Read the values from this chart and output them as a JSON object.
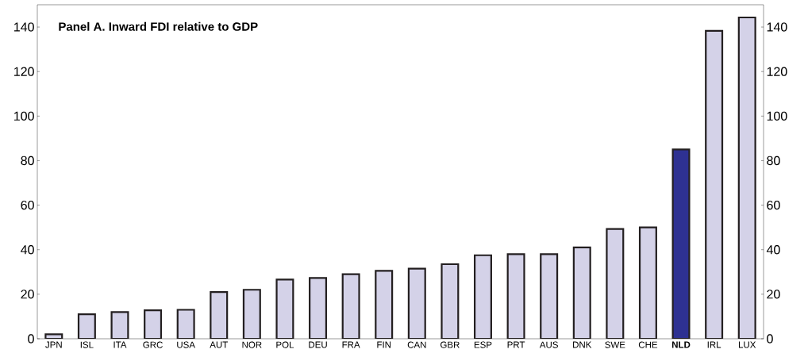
{
  "chart_data": {
    "type": "bar",
    "title": "Panel A. Inward FDI relative to GDP",
    "categories": [
      "JPN",
      "ISL",
      "ITA",
      "GRC",
      "USA",
      "AUT",
      "NOR",
      "POL",
      "DEU",
      "FRA",
      "FIN",
      "CAN",
      "GBR",
      "ESP",
      "PRT",
      "AUS",
      "DNK",
      "SWE",
      "CHE",
      "**NLD**",
      "IRL",
      "LUX"
    ],
    "values": [
      2,
      11,
      12,
      12.8,
      13,
      21,
      22,
      26.6,
      27.3,
      29,
      30.5,
      31.5,
      33.5,
      37.5,
      38,
      38,
      41,
      49.3,
      50,
      85,
      138.3,
      144.3
    ],
    "colors": [
      "#d4d2e8",
      "#d4d2e8",
      "#d4d2e8",
      "#d4d2e8",
      "#d4d2e8",
      "#d4d2e8",
      "#d4d2e8",
      "#d4d2e8",
      "#d4d2e8",
      "#d4d2e8",
      "#d4d2e8",
      "#d4d2e8",
      "#d4d2e8",
      "#d4d2e8",
      "#d4d2e8",
      "#d4d2e8",
      "#d4d2e8",
      "#d4d2e8",
      "#d4d2e8",
      "#2e3192",
      "#d4d2e8",
      "#d4d2e8"
    ],
    "ylim": [
      0,
      150
    ],
    "yticks": [
      0,
      20,
      40,
      60,
      80,
      100,
      120,
      140
    ],
    "y2lim": [
      0,
      150
    ],
    "y2ticks": [
      0,
      20,
      40,
      60,
      80,
      100,
      120,
      140
    ]
  }
}
